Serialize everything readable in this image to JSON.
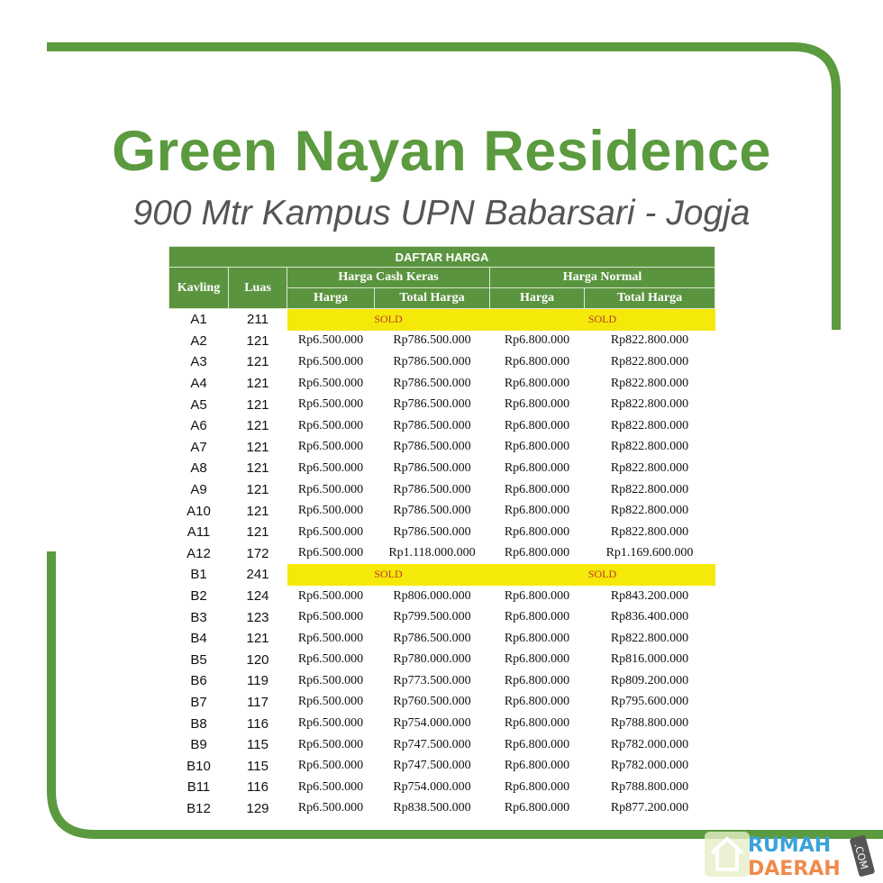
{
  "title": "Green Nayan Residence",
  "subtitle": "900 Mtr Kampus UPN Babarsari - Jogja",
  "table": {
    "caption": "DAFTAR HARGA",
    "headers": {
      "kavling": "Kavling",
      "luas": "Luas",
      "cash": "Harga Cash Keras",
      "normal": "Harga Normal",
      "harga": "Harga",
      "total": "Total  Harga"
    },
    "sold_label": "SOLD",
    "rows": [
      [
        "A1",
        "211",
        "SOLD"
      ],
      [
        "A2",
        "121",
        "Rp6.500.000",
        "Rp786.500.000",
        "Rp6.800.000",
        "Rp822.800.000"
      ],
      [
        "A3",
        "121",
        "Rp6.500.000",
        "Rp786.500.000",
        "Rp6.800.000",
        "Rp822.800.000"
      ],
      [
        "A4",
        "121",
        "Rp6.500.000",
        "Rp786.500.000",
        "Rp6.800.000",
        "Rp822.800.000"
      ],
      [
        "A5",
        "121",
        "Rp6.500.000",
        "Rp786.500.000",
        "Rp6.800.000",
        "Rp822.800.000"
      ],
      [
        "A6",
        "121",
        "Rp6.500.000",
        "Rp786.500.000",
        "Rp6.800.000",
        "Rp822.800.000"
      ],
      [
        "A7",
        "121",
        "Rp6.500.000",
        "Rp786.500.000",
        "Rp6.800.000",
        "Rp822.800.000"
      ],
      [
        "A8",
        "121",
        "Rp6.500.000",
        "Rp786.500.000",
        "Rp6.800.000",
        "Rp822.800.000"
      ],
      [
        "A9",
        "121",
        "Rp6.500.000",
        "Rp786.500.000",
        "Rp6.800.000",
        "Rp822.800.000"
      ],
      [
        "A10",
        "121",
        "Rp6.500.000",
        "Rp786.500.000",
        "Rp6.800.000",
        "Rp822.800.000"
      ],
      [
        "A11",
        "121",
        "Rp6.500.000",
        "Rp786.500.000",
        "Rp6.800.000",
        "Rp822.800.000"
      ],
      [
        "A12",
        "172",
        "Rp6.500.000",
        "Rp1.118.000.000",
        "Rp6.800.000",
        "Rp1.169.600.000"
      ],
      [
        "B1",
        "241",
        "SOLD"
      ],
      [
        "B2",
        "124",
        "Rp6.500.000",
        "Rp806.000.000",
        "Rp6.800.000",
        "Rp843.200.000"
      ],
      [
        "B3",
        "123",
        "Rp6.500.000",
        "Rp799.500.000",
        "Rp6.800.000",
        "Rp836.400.000"
      ],
      [
        "B4",
        "121",
        "Rp6.500.000",
        "Rp786.500.000",
        "Rp6.800.000",
        "Rp822.800.000"
      ],
      [
        "B5",
        "120",
        "Rp6.500.000",
        "Rp780.000.000",
        "Rp6.800.000",
        "Rp816.000.000"
      ],
      [
        "B6",
        "119",
        "Rp6.500.000",
        "Rp773.500.000",
        "Rp6.800.000",
        "Rp809.200.000"
      ],
      [
        "B7",
        "117",
        "Rp6.500.000",
        "Rp760.500.000",
        "Rp6.800.000",
        "Rp795.600.000"
      ],
      [
        "B8",
        "116",
        "Rp6.500.000",
        "Rp754.000.000",
        "Rp6.800.000",
        "Rp788.800.000"
      ],
      [
        "B9",
        "115",
        "Rp6.500.000",
        "Rp747.500.000",
        "Rp6.800.000",
        "Rp782.000.000"
      ],
      [
        "B10",
        "115",
        "Rp6.500.000",
        "Rp747.500.000",
        "Rp6.800.000",
        "Rp782.000.000"
      ],
      [
        "B11",
        "116",
        "Rp6.500.000",
        "Rp754.000.000",
        "Rp6.800.000",
        "Rp788.800.000"
      ],
      [
        "B12",
        "129",
        "Rp6.500.000",
        "Rp838.500.000",
        "Rp6.800.000",
        "Rp877.200.000"
      ]
    ]
  },
  "watermark": {
    "line1": "RUMAH",
    "line2": "DAERAH",
    "tag": ".COM"
  },
  "colors": {
    "green": "#5b9a3e",
    "sold": "#f5e90a"
  }
}
